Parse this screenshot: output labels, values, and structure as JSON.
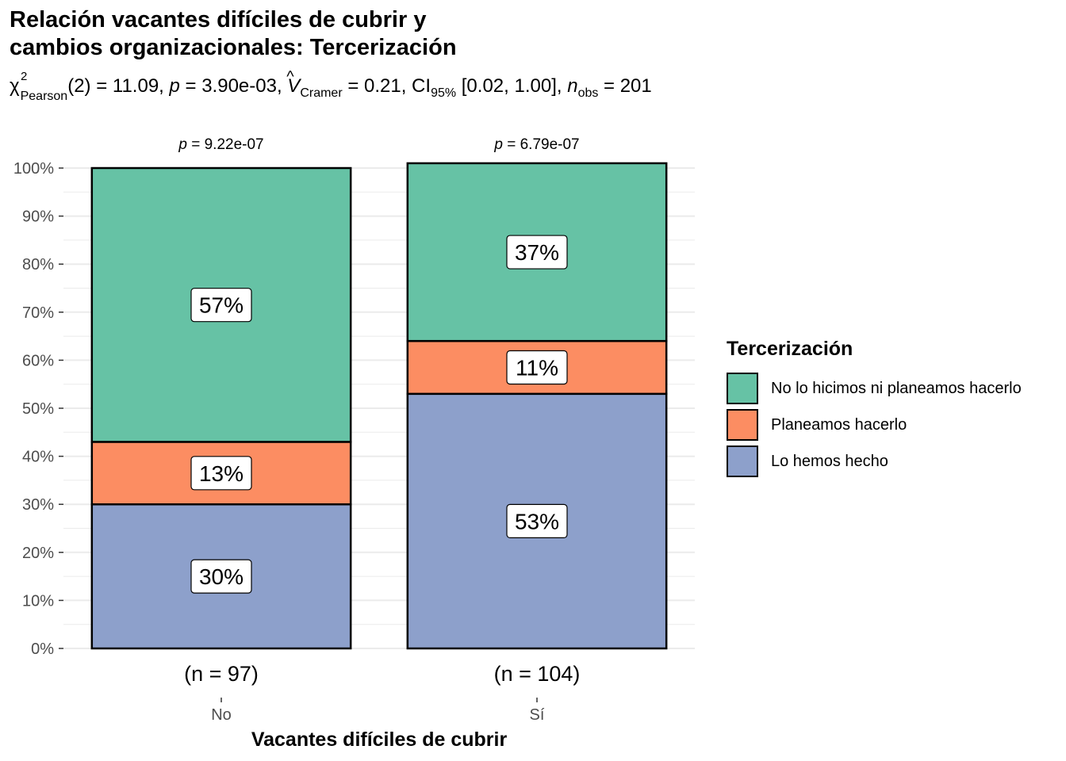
{
  "chart_data": {
    "type": "bar",
    "stacked": true,
    "percent": true,
    "title_line1": "Relación vacantes difíciles de cubrir y",
    "title_line2": "cambios organizacionales: Tercerización",
    "subtitle": {
      "chi_symbol": "χ",
      "chi_sup": "2",
      "chi_sub": "Pearson",
      "df_text": "(2) = 11.09, ",
      "p_symbol": "p",
      "p_text": " = 3.90e-03, ",
      "v_symbol": "V",
      "v_hat": "^",
      "v_sub": "Cramer",
      "v_text": " = 0.21, CI",
      "ci_sub": "95%",
      "ci_text": " [0.02, 1.00], ",
      "n_symbol": "n",
      "n_sub": "obs",
      "n_text": " = 201"
    },
    "xlabel": "Vacantes difíciles de cubrir",
    "ylabel": "",
    "ylim": [
      0,
      100
    ],
    "yticks": [
      "0%",
      "10%",
      "20%",
      "30%",
      "40%",
      "50%",
      "60%",
      "70%",
      "80%",
      "90%",
      "100%"
    ],
    "categories": [
      "No",
      "Sí"
    ],
    "counts": [
      "(n = 97)",
      "(n = 104)"
    ],
    "pvalues": [
      "p = 9.22e-07",
      "p = 6.79e-07"
    ],
    "series": [
      {
        "name": "Lo hemos hecho",
        "color": "#8DA0CB",
        "values": [
          30,
          53
        ],
        "labels": [
          "30%",
          "53%"
        ]
      },
      {
        "name": "Planeamos hacerlo",
        "color": "#FC8D62",
        "values": [
          13,
          11
        ],
        "labels": [
          "13%",
          "11%"
        ]
      },
      {
        "name": "No lo hicimos ni planeamos hacerlo",
        "color": "#66C2A5",
        "values": [
          57,
          37
        ],
        "labels": [
          "57%",
          "37%"
        ]
      }
    ],
    "legend": {
      "title": "Tercerización",
      "position": "right",
      "order": [
        "No lo hicimos ni planeamos hacerlo",
        "Planeamos hacerlo",
        "Lo hemos hecho"
      ]
    },
    "grid": true
  }
}
